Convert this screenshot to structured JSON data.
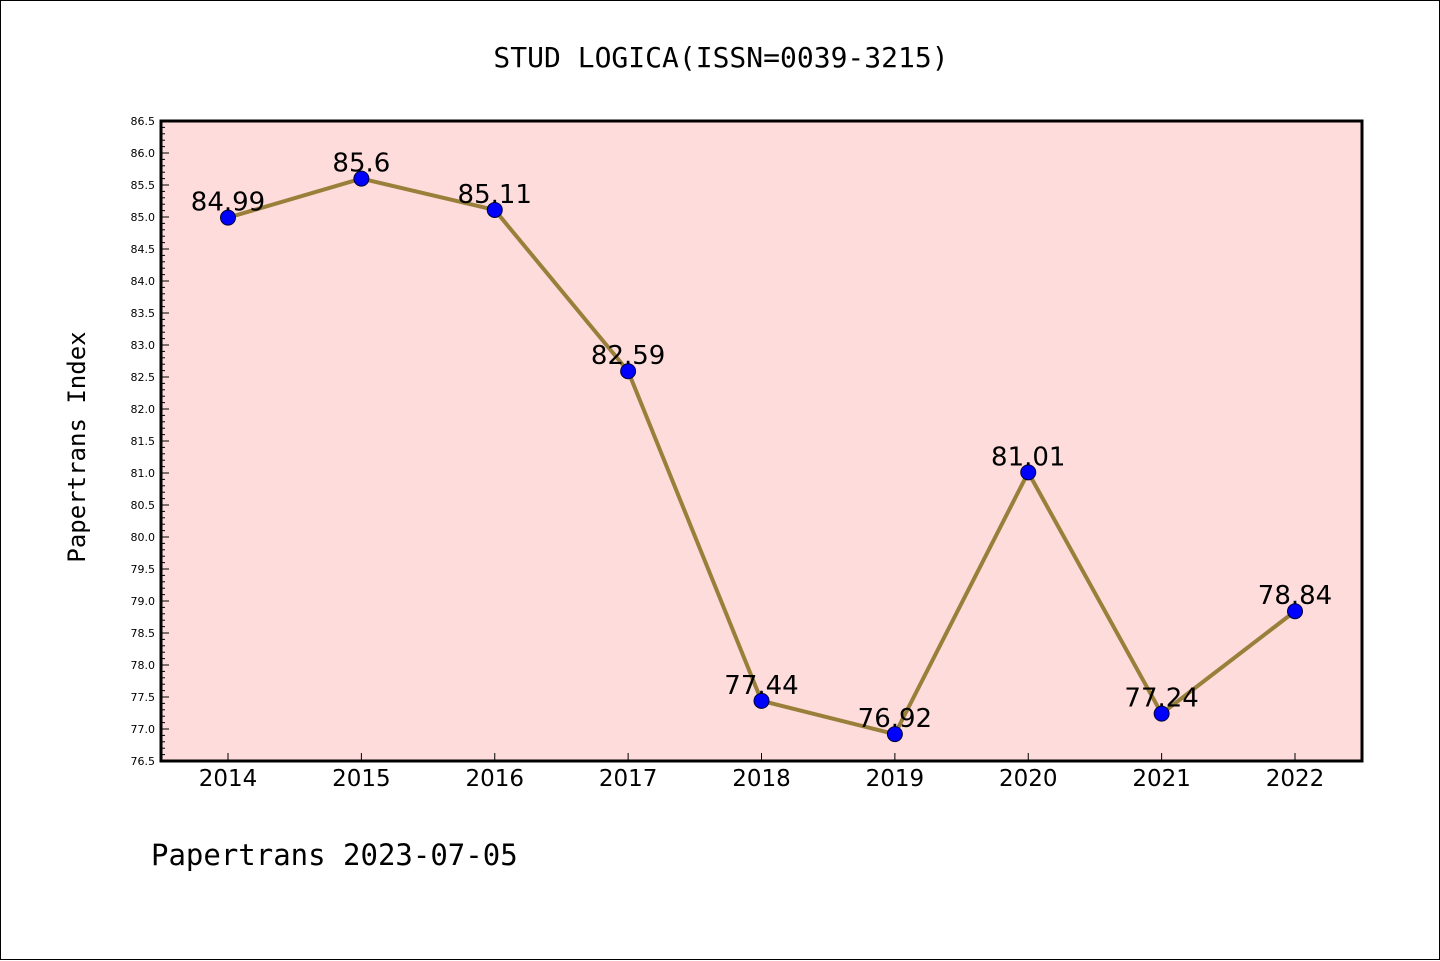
{
  "chart_data": {
    "type": "line",
    "title": "STUD LOGICA(ISSN=0039-3215)",
    "ylabel": "Papertrans Index",
    "xlabel": "",
    "categories": [
      "2014",
      "2015",
      "2016",
      "2017",
      "2018",
      "2019",
      "2020",
      "2021",
      "2022"
    ],
    "values": [
      84.99,
      85.6,
      85.11,
      82.59,
      77.44,
      76.92,
      81.01,
      77.24,
      78.84
    ],
    "data_labels": [
      "84.99",
      "85.6",
      "85.11",
      "82.59",
      "77.44",
      "76.92",
      "81.01",
      "77.24",
      "78.84"
    ],
    "ylim": [
      76.5,
      86.5
    ],
    "ytick_labels": [
      "76.5",
      "77.0",
      "77.5",
      "78.0",
      "78.5",
      "79.0",
      "79.5",
      "80.0",
      "80.5",
      "81.0",
      "81.5",
      "82.0",
      "82.5",
      "83.0",
      "83.5",
      "84.0",
      "84.5",
      "85.0",
      "85.5",
      "86.0",
      "86.5"
    ],
    "grid": false,
    "colors": {
      "line": "#9a7f3a",
      "marker": "#0000ff",
      "plot_background": "#fddcdb"
    },
    "footer": "Papertrans 2023-07-05"
  }
}
